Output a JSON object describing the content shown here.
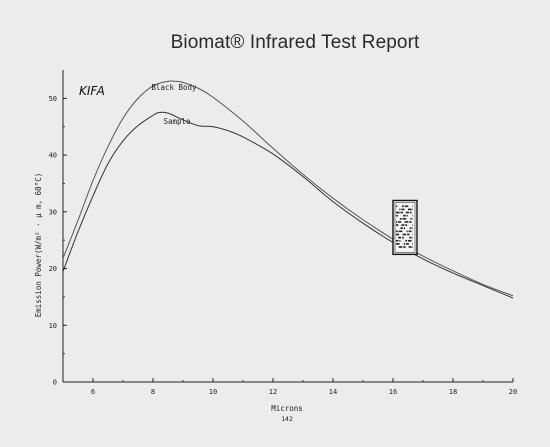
{
  "page_title": "Biomat® Infrared Test Report",
  "chart_data": {
    "type": "line",
    "corner_label": "KIFA",
    "xlabel": "Microns",
    "x_sublabel": "142",
    "ylabel": "Emission Power(W/m² · μ m, 60°C)",
    "xlim": [
      5,
      20
    ],
    "ylim": [
      0,
      55
    ],
    "x_ticks": [
      6,
      8,
      10,
      12,
      14,
      16,
      18,
      20
    ],
    "y_ticks": [
      0,
      10,
      20,
      30,
      40,
      50
    ],
    "grid": false,
    "colors": {
      "black_body": "#555555",
      "sample": "#333333",
      "axis": "#222222"
    },
    "series": [
      {
        "name": "Black Body",
        "x": [
          5,
          5.5,
          6,
          6.5,
          7,
          7.5,
          8,
          8.5,
          8.75,
          9,
          9.5,
          10,
          11,
          12,
          13,
          14,
          15,
          16,
          17,
          18,
          19,
          20
        ],
        "y": [
          21.8,
          28.5,
          35.5,
          41.5,
          46.5,
          50,
          52.2,
          53,
          53,
          52.8,
          51.8,
          50.2,
          46,
          41.2,
          36.6,
          32.4,
          28.6,
          25.2,
          22.2,
          19.6,
          17.2,
          15.2
        ]
      },
      {
        "name": "Sample",
        "x": [
          5,
          5.5,
          6,
          6.5,
          7,
          7.5,
          8,
          8.2,
          8.5,
          9,
          9.5,
          10,
          10.5,
          11,
          12,
          13,
          14,
          15,
          16,
          17,
          18,
          19,
          20
        ],
        "y": [
          19.5,
          26.5,
          32.8,
          38.5,
          42.5,
          45.2,
          47,
          47.5,
          47.4,
          46.2,
          45.2,
          45,
          44.3,
          43.2,
          40.2,
          36.2,
          31.8,
          28,
          24.6,
          21.7,
          19.2,
          17,
          14.8
        ]
      }
    ],
    "annotations": [
      {
        "text": "Black Body",
        "x": 8.7,
        "y": 51.5,
        "series": "Black Body"
      },
      {
        "text": "Sample",
        "x": 8.8,
        "y": 45.5,
        "series": "Sample"
      }
    ],
    "stamp": {
      "x": [
        16,
        16.8
      ],
      "y": [
        22.5,
        32
      ]
    }
  }
}
